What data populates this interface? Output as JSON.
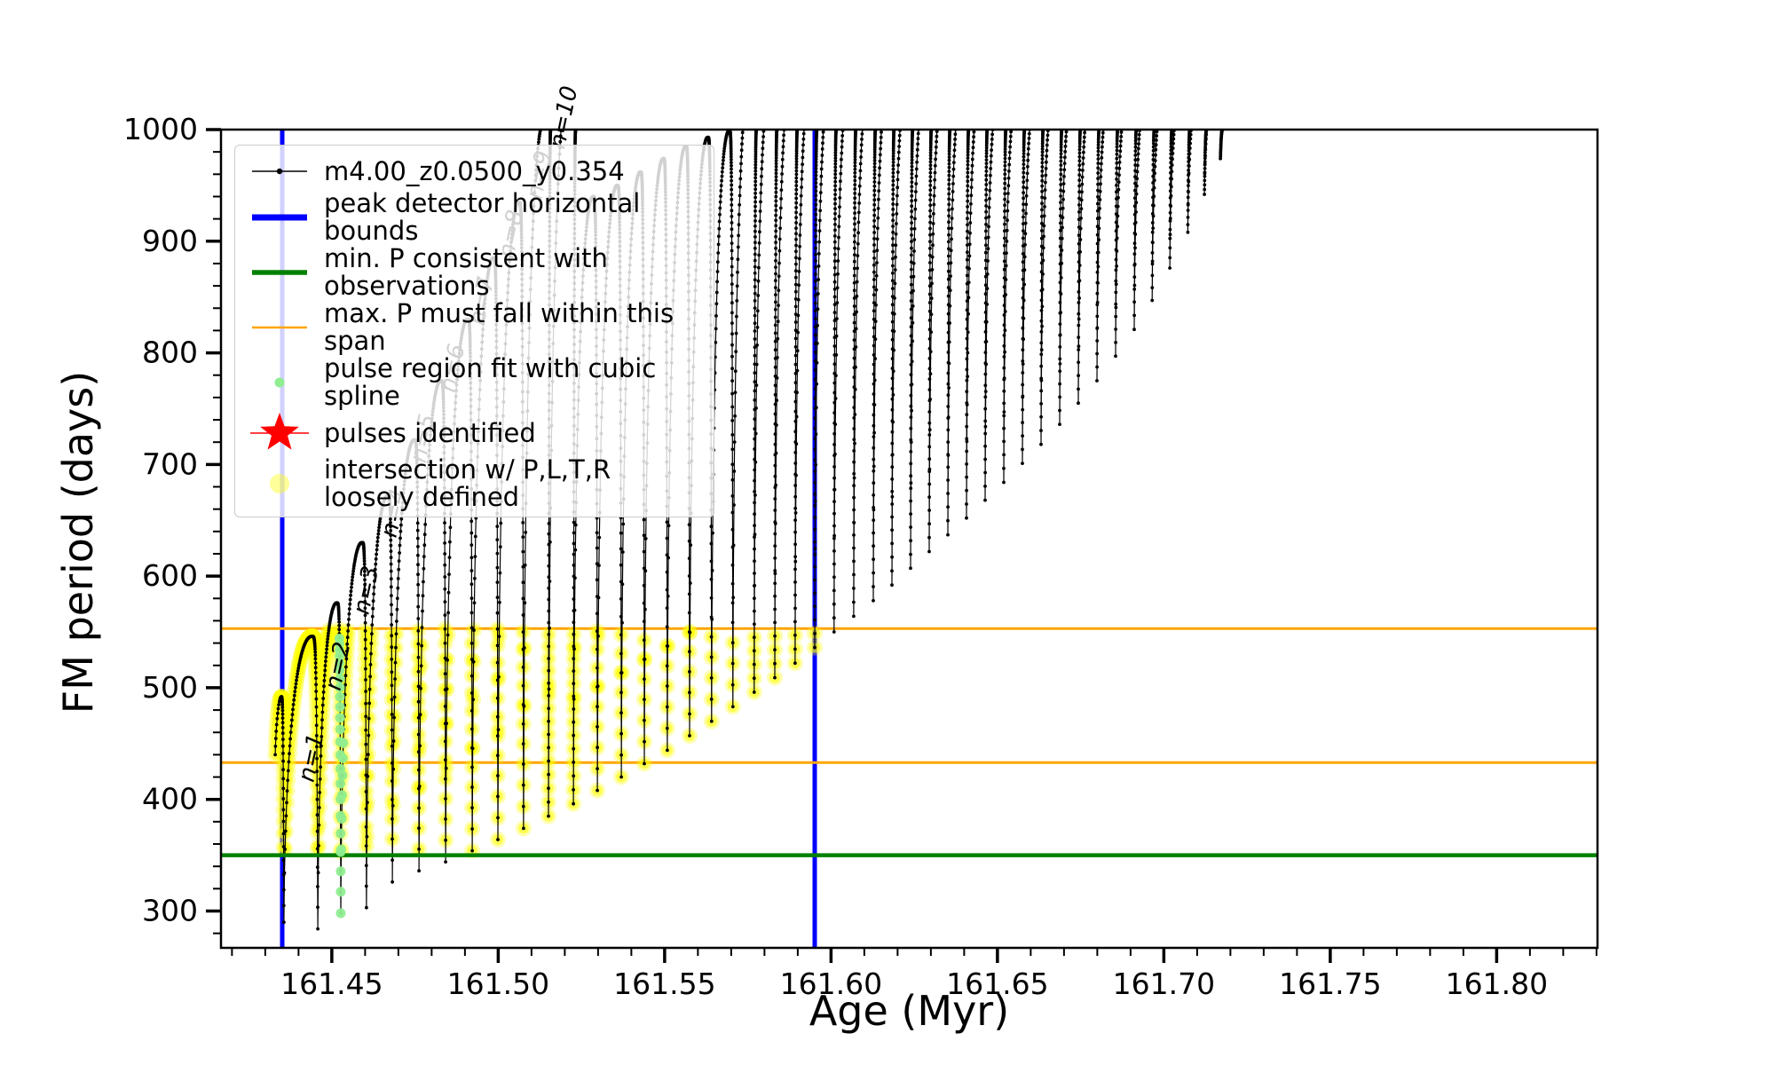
{
  "chart_data": {
    "type": "line",
    "title": "",
    "xlabel": "Age (Myr)",
    "ylabel": "FM period (days)",
    "xlim": [
      161.4167,
      161.8303
    ],
    "ylim": [
      267,
      1000
    ],
    "xticks": [
      161.45,
      161.5,
      161.55,
      161.6,
      161.65,
      161.7,
      161.75,
      161.8
    ],
    "xtick_labels": [
      "161.45",
      "161.50",
      "161.55",
      "161.60",
      "161.65",
      "161.70",
      "161.75",
      "161.80"
    ],
    "yticks": [
      300,
      400,
      500,
      600,
      700,
      800,
      900,
      1000
    ],
    "ytick_labels": [
      "300",
      "400",
      "500",
      "600",
      "700",
      "800",
      "900",
      "1000"
    ],
    "x_minor_step": 0.01,
    "y_minor_step": 20,
    "grid": false,
    "series_label": "m4.00_z0.0500_y0.354",
    "track_start": {
      "x": 161.433,
      "v": 440,
      "bump_peak_x": 161.4348,
      "bump_peak_v": 492
    },
    "pulses": {
      "comment": "thermal-pulse track: columns_x = age of each inter-pulse minimum (Myr); minima = FM period minimum (days); arc_peaks = peak of the arc rising from each column (>1000 means clipped at top)",
      "columns_x": [
        161.4356,
        161.4458,
        161.4527,
        161.4604,
        161.4682,
        161.4762,
        161.4842,
        161.4922,
        161.4999,
        161.5076,
        161.5151,
        161.5226,
        161.5298,
        161.537,
        161.5439,
        161.5508,
        161.5575,
        161.5641,
        161.5705,
        161.5769,
        161.5831,
        161.5892,
        161.5951,
        161.6009,
        161.6068,
        161.6127,
        161.6183,
        161.6239,
        161.6295,
        161.6351,
        161.6407,
        161.6463,
        161.6519,
        161.6575,
        161.6631,
        161.6687,
        161.6743,
        161.6799,
        161.6855,
        161.6911,
        161.6965,
        161.7018,
        161.7072,
        161.7122,
        161.717
      ],
      "minima": [
        290,
        284,
        298,
        303,
        326,
        336,
        344,
        354,
        364,
        374,
        385,
        396,
        408,
        420,
        432,
        444,
        457,
        470,
        483,
        496,
        509,
        522,
        536,
        550,
        564,
        578,
        592,
        607,
        622,
        637,
        652,
        668,
        684,
        701,
        718,
        736,
        755,
        775,
        797,
        821,
        847,
        876,
        908,
        942,
        974
      ],
      "arc_peaks": [
        546,
        576,
        630,
        672,
        722,
        775,
        830,
        885,
        935,
        1008,
        1045,
        940,
        950,
        962,
        974,
        985,
        993,
        999,
        1100,
        1100,
        1100,
        1100,
        1100,
        1100,
        1100,
        1100,
        1100,
        1100,
        1100,
        1100,
        1100,
        1100,
        1100,
        1100,
        1100,
        1100,
        1100,
        1100,
        1100,
        1100,
        1100,
        1100,
        1100,
        1100
      ]
    },
    "vlines": {
      "label": "peak detector horizontal bounds",
      "color": "#0000ff",
      "x": [
        161.4351,
        161.5951
      ]
    },
    "hlines": {
      "green": {
        "label": "min. P consistent with observations",
        "color": "#008000",
        "y": 350
      },
      "orange": {
        "label": "max. P must fall within this span",
        "color": "#ffa500",
        "y": [
          433,
          553
        ]
      }
    },
    "highlight": {
      "label": "intersection w/ P,L,T,R loosely defined",
      "color": "#ffff00",
      "v_range": [
        350,
        553
      ],
      "x_range": [
        161.433,
        161.5951
      ]
    },
    "spline_fit": {
      "label": "pulse region fit with cubic spline",
      "color": "#90ee90",
      "column_x": 161.4527,
      "v_range": [
        298,
        545
      ]
    },
    "pulse_labels": [
      {
        "text": "n=1",
        "x": 161.446,
        "v": 436
      },
      {
        "text": "n=2",
        "x": 161.454,
        "v": 518
      },
      {
        "text": "n=3",
        "x": 161.4625,
        "v": 586
      },
      {
        "text": "n=4",
        "x": 161.4708,
        "v": 655
      },
      {
        "text": "n=5",
        "x": 161.4796,
        "v": 722
      },
      {
        "text": "n=6",
        "x": 161.4884,
        "v": 785
      },
      {
        "text": "n=7",
        "x": 161.4972,
        "v": 845
      },
      {
        "text": "n=8",
        "x": 161.506,
        "v": 905
      },
      {
        "text": "n=9",
        "x": 161.5145,
        "v": 958
      },
      {
        "text": "n=10",
        "x": 161.5218,
        "v": 1012
      }
    ]
  },
  "legend": {
    "entries": [
      {
        "label": "m4.00_z0.0500_y0.354",
        "marker": "line-dot",
        "color": "#000000"
      },
      {
        "label": "peak detector horizontal bounds",
        "marker": "line",
        "color": "#0000ff",
        "lw": 7
      },
      {
        "label": "min. P consistent with observations",
        "marker": "line",
        "color": "#008000",
        "lw": 5.5
      },
      {
        "label": "max. P must fall within this span",
        "marker": "line",
        "color": "#ffa500",
        "lw": 2.5
      },
      {
        "label": "pulse region fit with cubic spline",
        "marker": "dot",
        "color": "#90ee90",
        "r": 5.5
      },
      {
        "label": "pulses identified",
        "marker": "star-line",
        "color": "#ff0000"
      },
      {
        "label": "intersection w/ P,L,T,R\nloosely defined",
        "marker": "dot",
        "color": "rgba(255,255,0,0.4)",
        "r": 11
      }
    ]
  },
  "axes_labels": {
    "x": "Age (Myr)",
    "y": "FM period (days)"
  }
}
